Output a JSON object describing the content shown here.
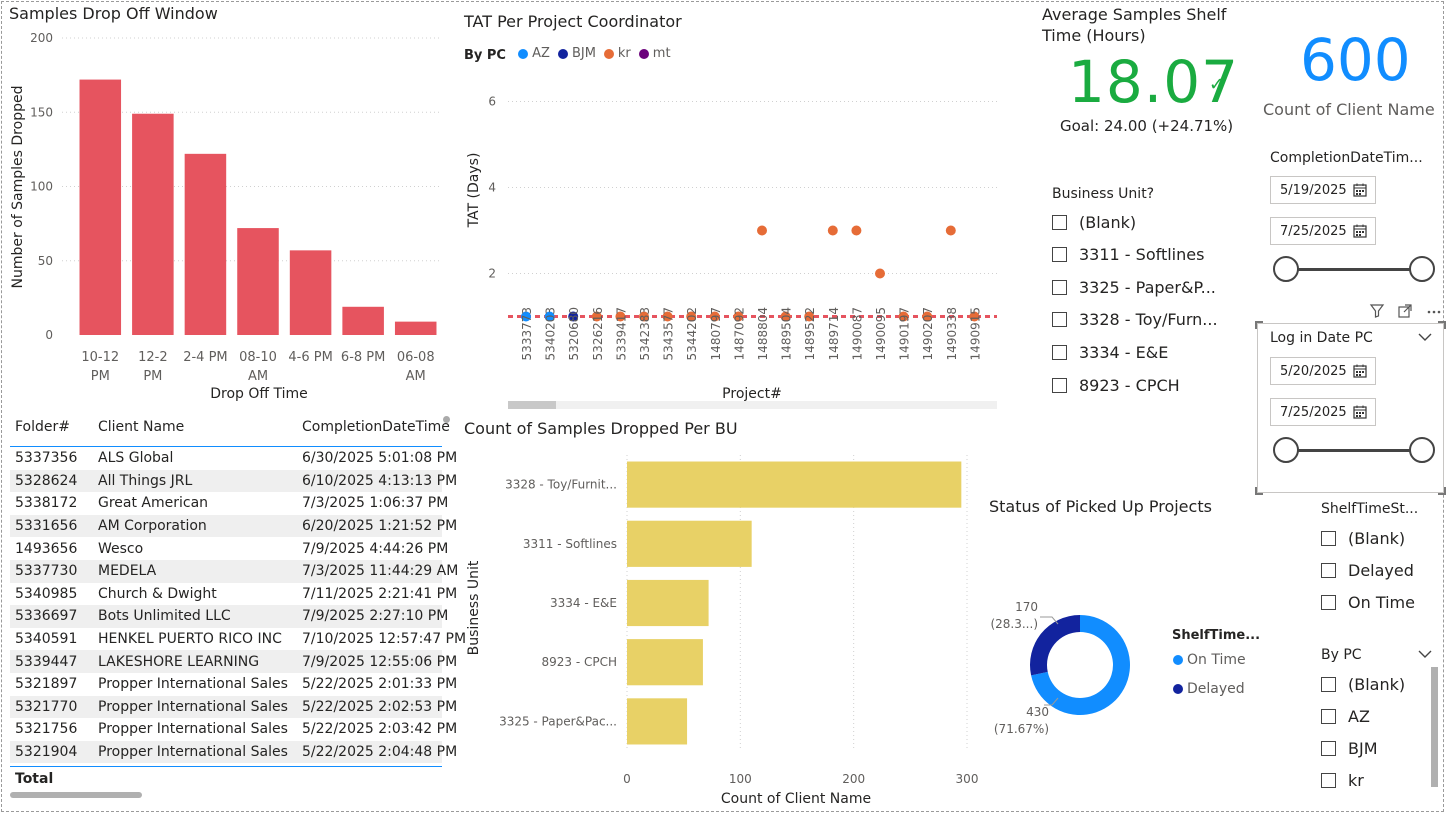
{
  "samples_chart": {
    "title": "Samples Drop Off Window",
    "ylabel": "Number of Samples Dropped",
    "xlabel": "Drop Off Time",
    "yticks": [
      "200",
      "150",
      "100",
      "50",
      "0"
    ],
    "cat_line1": [
      "10-12",
      "12-2",
      "2-4 PM",
      "08-10",
      "4-6 PM",
      "6-8 PM",
      "06-08"
    ],
    "cat_line2": [
      "PM",
      "PM",
      "",
      "AM",
      "",
      "",
      "AM"
    ],
    "color": "#e6545f"
  },
  "tat_chart": {
    "title": "TAT Per Project Coordinator",
    "legend_title": "By PC",
    "legend": [
      {
        "name": "AZ",
        "color": "#118dff"
      },
      {
        "name": "BJM",
        "color": "#12239e"
      },
      {
        "name": "kr",
        "color": "#e66c37"
      },
      {
        "name": "mt",
        "color": "#6b007b"
      }
    ],
    "ylabel": "TAT (Days)",
    "xlabel": "Project#",
    "yticks": [
      "6",
      "4",
      "2"
    ],
    "projects": [
      "5333773",
      "5340203",
      "5320680",
      "5326216",
      "5339417",
      "5342383",
      "5343577",
      "5344202",
      "1480797",
      "1487092",
      "1488804",
      "1489504",
      "1489522",
      "1489714",
      "1490087",
      "1490095",
      "1490197",
      "1490207",
      "1490338",
      "1490915"
    ]
  },
  "shelf_kpi": {
    "title_line1": "Average Samples Shelf",
    "title_line2": "Time (Hours)",
    "value": "18.07",
    "check": "✓",
    "goal": "Goal: 24.00 (+24.71%)"
  },
  "client_card": {
    "value": "600",
    "label": "Count of Client Name"
  },
  "bu_slicer": {
    "title": "Business Unit?",
    "items": [
      "(Blank)",
      "3311 - Softlines",
      "3325 - Paper&P...",
      "3328 - Toy/Furn...",
      "3334 - E&E",
      "8923 - CPCH"
    ]
  },
  "completion_slicer": {
    "title": "CompletionDateTim...",
    "start": "5/19/2025",
    "end": "7/25/2025"
  },
  "login_slicer": {
    "title": "Log in Date PC",
    "start": "5/20/2025",
    "end": "7/25/2025"
  },
  "table": {
    "headers": [
      "Folder#",
      "Client Name",
      "CompletionDateTime"
    ],
    "rows": [
      [
        "5337356",
        "ALS Global",
        "6/30/2025 5:01:08 PM"
      ],
      [
        "5328624",
        "All Things JRL",
        "6/10/2025 4:13:13 PM"
      ],
      [
        "5338172",
        "Great American",
        "7/3/2025 1:06:37 PM"
      ],
      [
        "5331656",
        "AM Corporation",
        "6/20/2025 1:21:52 PM"
      ],
      [
        "1493656",
        "Wesco",
        "7/9/2025 4:44:26 PM"
      ],
      [
        "5337730",
        "MEDELA",
        "7/3/2025 11:44:29 AM"
      ],
      [
        "5340985",
        "Church & Dwight",
        "7/11/2025 2:21:41 PM"
      ],
      [
        "5336697",
        "Bots Unlimited LLC",
        "7/9/2025 2:27:10 PM"
      ],
      [
        "5340591",
        "HENKEL PUERTO RICO INC",
        "7/10/2025 12:57:47 PM"
      ],
      [
        "5339447",
        "LAKESHORE LEARNING",
        "7/9/2025 12:55:06 PM"
      ],
      [
        "5321897",
        "Propper International Sales",
        "5/22/2025 2:01:33 PM"
      ],
      [
        "5321770",
        "Propper International Sales",
        "5/22/2025 2:02:53 PM"
      ],
      [
        "5321756",
        "Propper International Sales",
        "5/22/2025 2:03:42 PM"
      ],
      [
        "5321904",
        "Propper International Sales",
        "5/22/2025 2:04:48 PM"
      ]
    ],
    "total_label": "Total"
  },
  "bu_chart": {
    "title": "Count of Samples Dropped Per BU",
    "ylabel": "Business Unit",
    "xlabel": "Count of Client Name",
    "xticks": [
      "0",
      "100",
      "200",
      "300"
    ],
    "color": "#e8d166"
  },
  "status_chart": {
    "title": "Status of Picked Up Projects",
    "legend_title": "ShelfTime...",
    "legend": [
      {
        "name": "On Time",
        "color": "#118dff"
      },
      {
        "name": "Delayed",
        "color": "#12239e"
      }
    ],
    "label_delayed_1": "170",
    "label_delayed_2": "(28.3...)",
    "label_ontime_1": "430",
    "label_ontime_2": "(71.67%)"
  },
  "shelf_slicer": {
    "title": "ShelfTimeSt...",
    "items": [
      "(Blank)",
      "Delayed",
      "On Time"
    ]
  },
  "pc_slicer": {
    "title": "By PC",
    "items": [
      "(Blank)",
      "AZ",
      "BJM",
      "kr"
    ]
  },
  "chart_data": [
    {
      "type": "bar",
      "title": "Samples Drop Off Window",
      "xlabel": "Drop Off Time",
      "ylabel": "Number of Samples Dropped",
      "categories": [
        "10-12 PM",
        "12-2 PM",
        "2-4 PM",
        "08-10 AM",
        "4-6 PM",
        "6-8 PM",
        "06-08 AM"
      ],
      "values": [
        172,
        149,
        122,
        72,
        57,
        19,
        9
      ],
      "ylim": [
        0,
        200
      ]
    },
    {
      "type": "scatter",
      "title": "TAT Per Project Coordinator",
      "xlabel": "Project#",
      "ylabel": "TAT (Days)",
      "categories": [
        "5333773",
        "5340203",
        "5320680",
        "5326216",
        "5339417",
        "5342383",
        "5343577",
        "5344202",
        "1480797",
        "1487092",
        "1488804",
        "1489504",
        "1489522",
        "1489714",
        "1490087",
        "1490095",
        "1490197",
        "1490207",
        "1490338",
        "1490915"
      ],
      "series": [
        {
          "name": "AZ",
          "values": [
            1,
            1,
            null,
            null,
            null,
            null,
            null,
            null,
            null,
            null,
            null,
            null,
            null,
            null,
            null,
            null,
            null,
            null,
            null,
            null
          ]
        },
        {
          "name": "BJM",
          "values": [
            null,
            null,
            1,
            null,
            null,
            null,
            null,
            null,
            null,
            null,
            null,
            null,
            null,
            null,
            null,
            null,
            null,
            null,
            null,
            null
          ]
        },
        {
          "name": "kr",
          "values": [
            null,
            null,
            null,
            1,
            1,
            1,
            1,
            1,
            1,
            1,
            3,
            1,
            1,
            3,
            3,
            2,
            1,
            1,
            3,
            1
          ]
        }
      ],
      "reference_line": 1,
      "ylim": [
        0.5,
        6.5
      ]
    },
    {
      "type": "bar",
      "orientation": "horizontal",
      "title": "Count of Samples Dropped Per BU",
      "xlabel": "Count of Client Name",
      "ylabel": "Business Unit",
      "categories": [
        "3328 - Toy/Furnit...",
        "3311 - Softlines",
        "3334 - E&E",
        "8923 - CPCH",
        "3325 - Paper&Pac..."
      ],
      "values": [
        295,
        110,
        72,
        67,
        53
      ],
      "xlim": [
        0,
        300
      ]
    },
    {
      "type": "pie",
      "title": "Status of Picked Up Projects",
      "categories": [
        "On Time",
        "Delayed"
      ],
      "values": [
        430,
        170
      ]
    }
  ]
}
